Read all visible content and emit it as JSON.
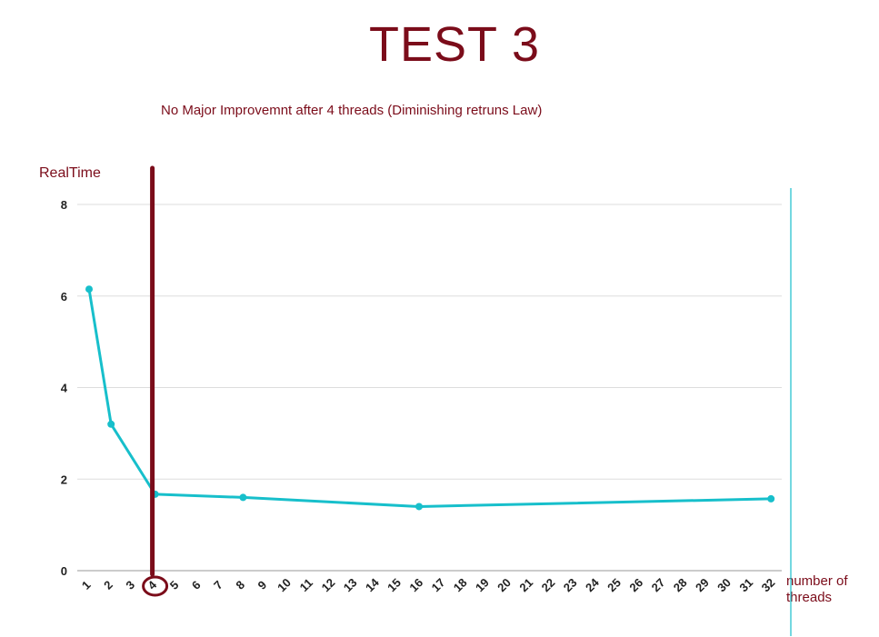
{
  "header": {
    "title": "TEST 3",
    "annotation": "No Major Improvemnt after 4 threads  (Diminishing retruns Law)"
  },
  "chart_data": {
    "type": "line",
    "ylabel": "RealTime",
    "xlabel": "number of threads",
    "ylim": [
      0,
      8
    ],
    "y_ticks": [
      0,
      2,
      4,
      6,
      8
    ],
    "x_ticks": [
      1,
      2,
      3,
      4,
      5,
      6,
      7,
      8,
      9,
      10,
      11,
      12,
      13,
      14,
      15,
      16,
      17,
      18,
      19,
      20,
      21,
      22,
      23,
      24,
      25,
      26,
      27,
      28,
      29,
      30,
      31,
      32
    ],
    "highlight_tick": 4,
    "grid": true,
    "series": [
      {
        "x": [
          1,
          2,
          4,
          8,
          16,
          32
        ],
        "values": [
          6.15,
          3.2,
          1.67,
          1.6,
          1.4,
          1.57
        ],
        "color": "#17bfcb"
      }
    ],
    "marker_line_x": 4,
    "marker_color": "#7b0c1a"
  }
}
